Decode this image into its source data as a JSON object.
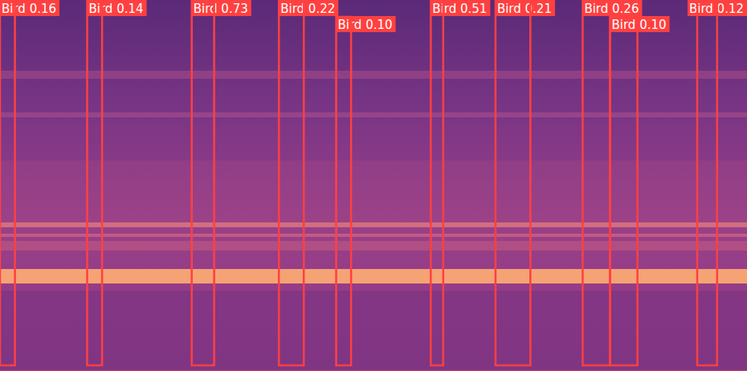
{
  "chart_data": {
    "type": "detection",
    "categories": [
      "Bird",
      "Bird",
      "Bird",
      "Bird",
      "Bird",
      "Bird",
      "Bird",
      "Bird",
      "Bird",
      "Bird"
    ],
    "values": [
      0.16,
      0.14,
      0.73,
      0.22,
      0.1,
      0.51,
      0.21,
      0.26,
      0.1,
      0.12
    ],
    "value_labels": [
      "0.16",
      "0.14",
      "0.73",
      "0.22",
      "0.10",
      "0.51",
      "0.21",
      "0.26",
      "0.10",
      "0.12"
    ],
    "start": [
      0.0,
      0.35,
      0.77,
      1.12,
      1.35,
      1.73,
      1.99,
      2.34,
      2.45,
      2.8
    ],
    "end": [
      0.06,
      0.41,
      0.86,
      1.22,
      1.41,
      1.78,
      2.13,
      2.45,
      2.56,
      2.88
    ],
    "xlim": [
      0,
      3
    ],
    "data_labels": true,
    "tick_labels": false,
    "color": "#ff4040"
  }
}
